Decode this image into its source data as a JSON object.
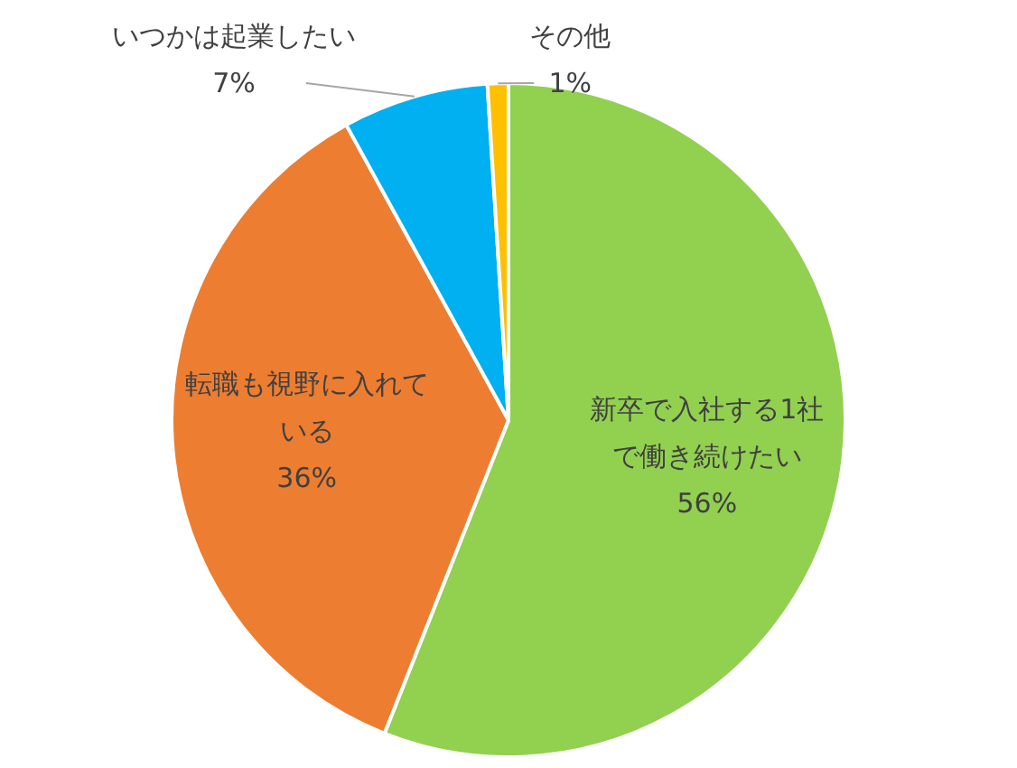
{
  "chart_data": {
    "type": "pie",
    "categories": [
      "新卒で入社する1社で働き続けたい",
      "転職も視野に入れている",
      "いつかは起業したい",
      "その他"
    ],
    "values": [
      56,
      36,
      7,
      1
    ],
    "colors": [
      "#92d050",
      "#ed7d31",
      "#00b0f0",
      "#ffc000"
    ],
    "value_labels": [
      "56%",
      "36%",
      "7%",
      "1%"
    ],
    "legend": false
  }
}
